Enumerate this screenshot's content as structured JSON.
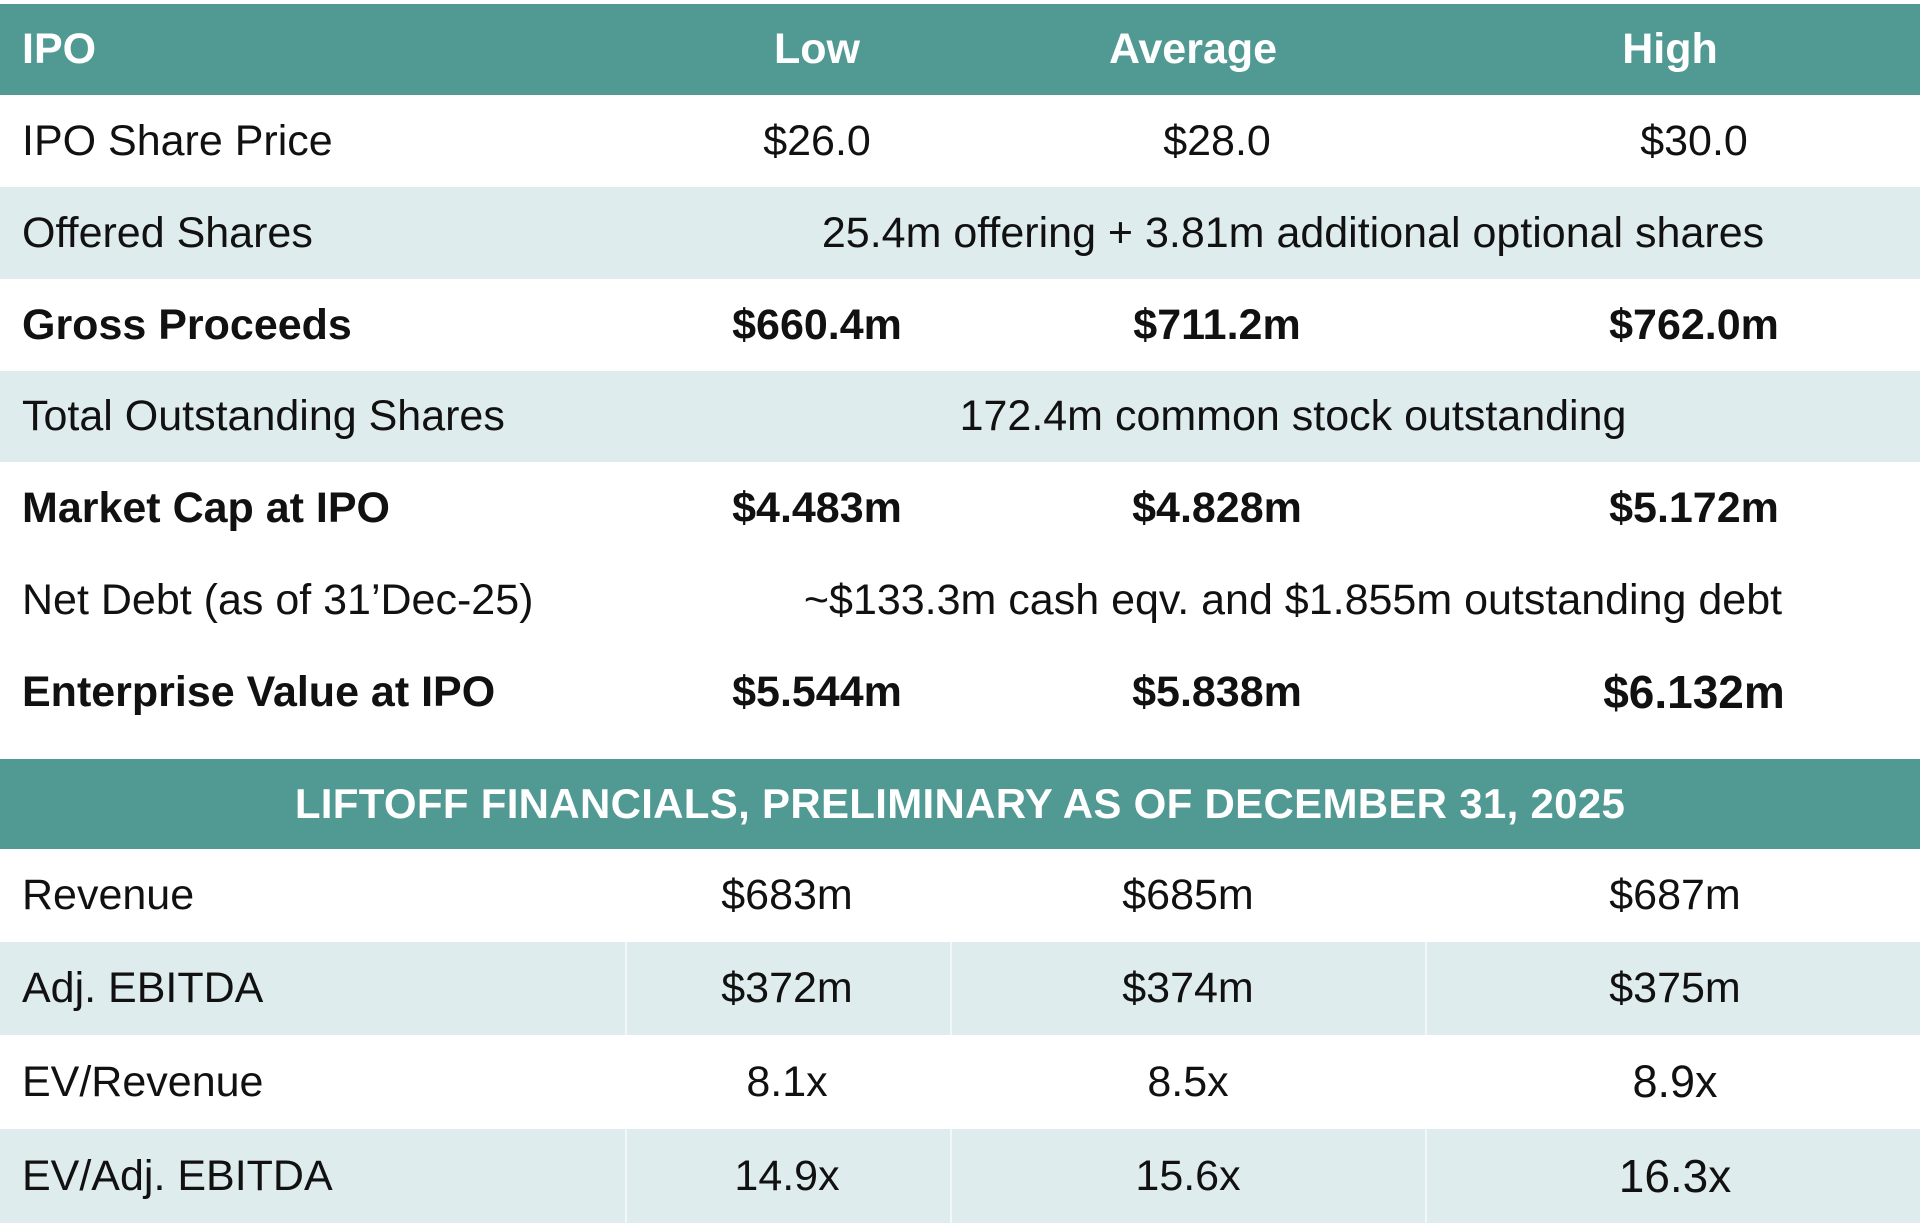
{
  "ipo_table": {
    "header": {
      "label": "IPO",
      "low": "Low",
      "average": "Average",
      "high": "High"
    },
    "rows": [
      {
        "label": "IPO Share Price",
        "low": "$26.0",
        "average": "$28.0",
        "high": "$30.0"
      },
      {
        "label": "Offered Shares",
        "span": "25.4m offering + 3.81m additional optional shares"
      },
      {
        "label": "Gross Proceeds",
        "low": "$660.4m",
        "average": "$711.2m",
        "high": "$762.0m"
      },
      {
        "label": "Total Outstanding Shares",
        "span": "172.4m common stock outstanding"
      },
      {
        "label": "Market Cap at IPO",
        "low": "$4.483m",
        "average": "$4.828m",
        "high": "$5.172m"
      },
      {
        "label": "Net Debt (as of 31’Dec-25)",
        "span": "~$133.3m cash eqv. and $1.855m outstanding debt"
      },
      {
        "label": "Enterprise Value at IPO",
        "low": "$5.544m",
        "average": "$5.838m",
        "high": "$6.132m"
      }
    ]
  },
  "financials_table": {
    "title": "LIFTOFF FINANCIALS, PRELIMINARY AS OF DECEMBER 31, 2025",
    "rows": [
      {
        "label": "Revenue",
        "low": "$683m",
        "average": "$685m",
        "high": "$687m"
      },
      {
        "label": "Adj. EBITDA",
        "low": "$372m",
        "average": "$374m",
        "high": "$375m"
      },
      {
        "label": "EV/Revenue",
        "low": "8.1x",
        "average": "8.5x",
        "high": "8.9x"
      },
      {
        "label": "EV/Adj. EBITDA",
        "low": "14.9x",
        "average": "15.6x",
        "high": "16.3x"
      }
    ]
  },
  "colors": {
    "header_teal": "#519a94",
    "shaded_row": "#dfeced",
    "plain_row": "#ffffff"
  }
}
